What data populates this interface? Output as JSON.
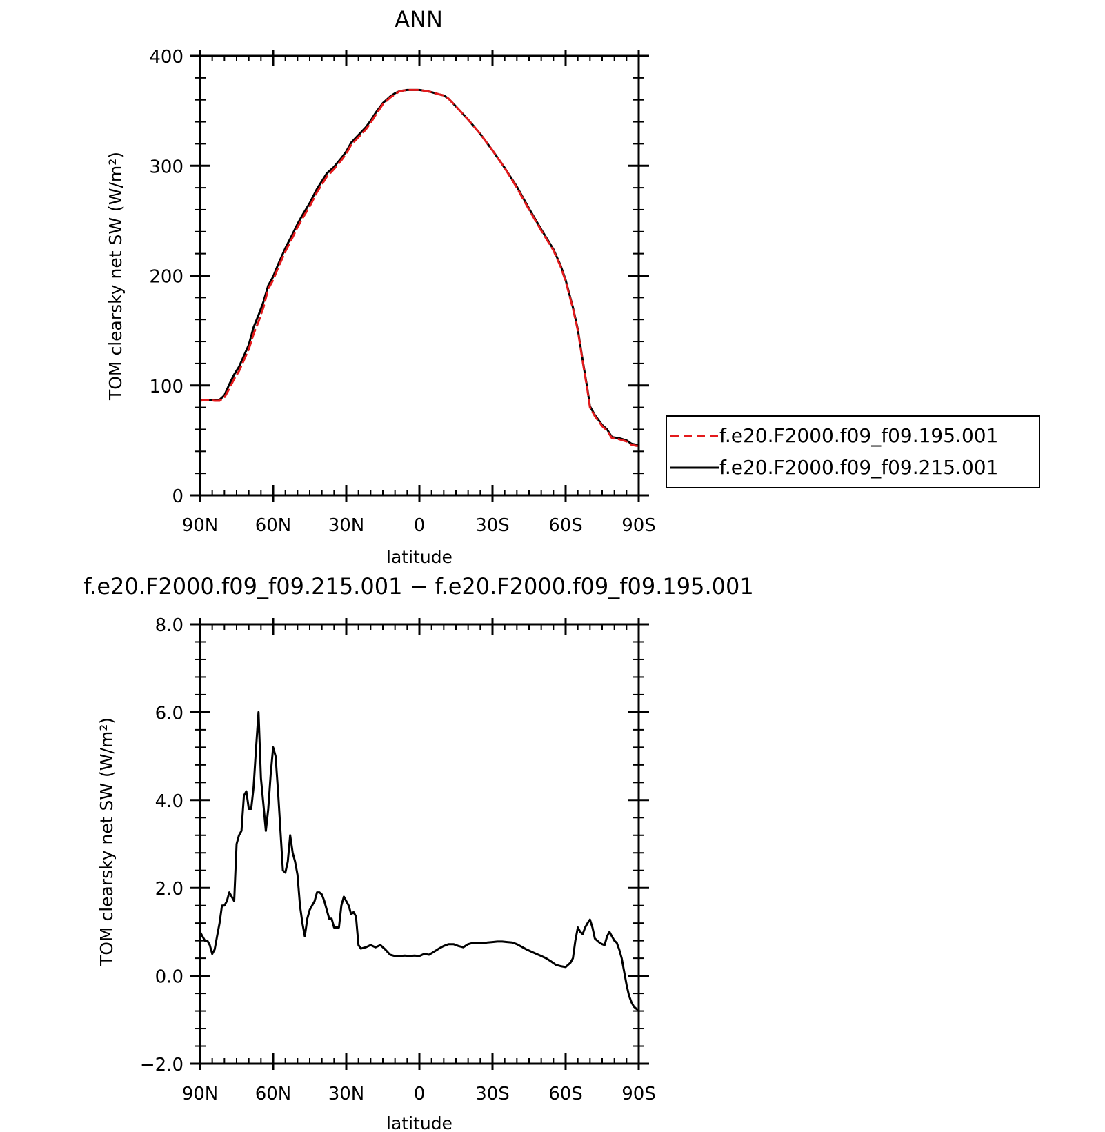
{
  "chart_data": [
    {
      "type": "line",
      "title": "ANN",
      "xlabel": "latitude",
      "ylabel": "TOM clearsky net SW (W/m²)",
      "xlim": [
        90,
        -90
      ],
      "ylim": [
        0,
        400
      ],
      "x_ticks": [
        90,
        60,
        30,
        0,
        -30,
        -60,
        -90
      ],
      "x_ticklabels": [
        "90N",
        "60N",
        "30N",
        "0",
        "30S",
        "60S",
        "90S"
      ],
      "y_ticks": [
        0,
        100,
        200,
        300,
        400
      ],
      "y_ticklabels": [
        "0",
        "100",
        "200",
        "300",
        "400"
      ],
      "grid": false,
      "legend_position": "right",
      "x": [
        90,
        87,
        84,
        82,
        80,
        78,
        76,
        74,
        72,
        70,
        68,
        66,
        64,
        62,
        60,
        58,
        55,
        52,
        50,
        48,
        45,
        42,
        40,
        38,
        35,
        32,
        30,
        28,
        25,
        22,
        20,
        18,
        15,
        12,
        10,
        8,
        5,
        2,
        0,
        -3,
        -5,
        -8,
        -10,
        -12,
        -15,
        -20,
        -25,
        -30,
        -35,
        -40,
        -45,
        -50,
        -55,
        -58,
        -60,
        -63,
        -65,
        -67,
        -69,
        -70,
        -72,
        -75,
        -77,
        -79,
        -82,
        -85,
        -87,
        -89,
        -90
      ],
      "series": [
        {
          "name": "f.e20.F2000.f09_f09.195.001",
          "color": "#e31a1c",
          "dash": "dashed",
          "values": [
            86,
            87,
            86,
            86,
            89,
            97,
            106,
            113,
            123,
            133,
            147,
            158,
            171,
            188,
            196,
            207,
            222,
            235,
            244,
            252,
            263,
            276,
            283,
            290,
            297,
            305,
            311,
            319,
            326,
            333,
            339,
            346,
            356,
            362,
            365,
            368,
            369,
            369,
            369,
            368,
            367,
            365,
            364,
            361,
            354,
            342,
            329,
            314,
            298,
            280,
            260,
            241,
            223,
            208,
            195,
            170,
            150,
            122,
            95,
            80,
            72,
            63,
            59,
            52,
            51,
            49,
            46,
            45,
            45
          ]
        },
        {
          "name": "f.e20.F2000.f09_f09.215.001",
          "color": "#000000",
          "dash": "solid",
          "values": [
            87,
            87,
            87,
            87,
            91,
            101,
            110,
            117,
            127,
            137,
            153,
            164,
            176,
            191,
            199,
            210,
            225,
            238,
            247,
            255,
            266,
            279,
            286,
            293,
            299,
            307,
            313,
            321,
            328,
            335,
            341,
            348,
            357,
            363,
            366,
            368,
            369,
            369,
            369,
            368,
            367,
            365,
            364,
            361,
            354,
            342,
            329,
            314,
            298,
            281,
            261,
            242,
            224,
            209,
            196,
            171,
            151,
            123,
            96,
            81,
            73,
            64,
            60,
            53,
            52,
            50,
            47,
            46,
            45
          ]
        }
      ]
    },
    {
      "type": "line",
      "title": "f.e20.F2000.f09_f09.215.001 − f.e20.F2000.f09_f09.195.001",
      "xlabel": "latitude",
      "ylabel": "TOM clearsky net SW (W/m²)",
      "xlim": [
        90,
        -90
      ],
      "ylim": [
        -2,
        8
      ],
      "x_ticks": [
        90,
        60,
        30,
        0,
        -30,
        -60,
        -90
      ],
      "x_ticklabels": [
        "90N",
        "60N",
        "30N",
        "0",
        "30S",
        "60S",
        "90S"
      ],
      "y_ticks": [
        -2,
        0,
        2,
        4,
        6,
        8
      ],
      "y_ticklabels": [
        "−2.0",
        "0.0",
        "2.0",
        "4.0",
        "6.0",
        "8.0"
      ],
      "grid": false,
      "series": [
        {
          "name": "",
          "color": "#000000",
          "dash": "solid",
          "x": [
            90,
            89,
            88,
            87,
            86,
            85,
            84,
            83,
            82,
            81,
            80,
            79,
            78,
            77,
            76,
            75,
            74,
            73,
            72,
            71,
            70,
            69,
            68,
            67,
            66,
            65,
            64,
            63,
            62,
            61,
            60,
            59,
            58,
            57,
            56,
            55,
            54,
            53,
            52,
            51,
            50,
            49,
            48,
            47,
            46,
            45,
            44,
            43,
            42,
            41,
            40,
            39,
            38,
            37,
            36,
            35,
            34,
            33,
            32,
            31,
            30,
            29,
            28,
            27,
            26,
            25,
            24,
            22,
            20,
            18,
            16,
            14,
            12,
            10,
            8,
            6,
            4,
            2,
            0,
            -2,
            -4,
            -6,
            -8,
            -10,
            -12,
            -14,
            -16,
            -18,
            -20,
            -22,
            -24,
            -26,
            -28,
            -30,
            -32,
            -34,
            -36,
            -38,
            -40,
            -42,
            -44,
            -46,
            -48,
            -50,
            -52,
            -54,
            -56,
            -58,
            -60,
            -61,
            -62,
            -63,
            -64,
            -65,
            -66,
            -67,
            -68,
            -69,
            -70,
            -71,
            -72,
            -73,
            -74,
            -75,
            -76,
            -77,
            -78,
            -79,
            -80,
            -81,
            -82,
            -83,
            -84,
            -85,
            -86,
            -87,
            -88,
            -89,
            -90
          ],
          "values": [
            1.0,
            0.9,
            0.8,
            0.8,
            0.7,
            0.5,
            0.6,
            0.9,
            1.2,
            1.6,
            1.6,
            1.7,
            1.9,
            1.8,
            1.7,
            3.0,
            3.2,
            3.3,
            4.1,
            4.2,
            3.8,
            3.8,
            4.3,
            5.2,
            6.0,
            4.5,
            3.9,
            3.3,
            3.8,
            4.6,
            5.2,
            5.0,
            4.2,
            3.3,
            2.4,
            2.35,
            2.6,
            3.2,
            2.8,
            2.6,
            2.3,
            1.6,
            1.2,
            0.9,
            1.3,
            1.5,
            1.6,
            1.7,
            1.9,
            1.9,
            1.85,
            1.7,
            1.5,
            1.3,
            1.3,
            1.1,
            1.1,
            1.1,
            1.6,
            1.8,
            1.7,
            1.6,
            1.4,
            1.45,
            1.35,
            0.7,
            0.62,
            0.65,
            0.7,
            0.65,
            0.7,
            0.6,
            0.48,
            0.45,
            0.45,
            0.46,
            0.45,
            0.46,
            0.45,
            0.5,
            0.48,
            0.55,
            0.62,
            0.68,
            0.72,
            0.72,
            0.68,
            0.65,
            0.72,
            0.75,
            0.75,
            0.74,
            0.76,
            0.77,
            0.78,
            0.78,
            0.77,
            0.76,
            0.72,
            0.66,
            0.6,
            0.55,
            0.5,
            0.45,
            0.4,
            0.33,
            0.25,
            0.22,
            0.2,
            0.25,
            0.3,
            0.4,
            0.8,
            1.1,
            1.0,
            0.95,
            1.1,
            1.2,
            1.28,
            1.1,
            0.85,
            0.8,
            0.75,
            0.72,
            0.7,
            0.9,
            1.0,
            0.9,
            0.8,
            0.75,
            0.6,
            0.4,
            0.1,
            -0.2,
            -0.45,
            -0.6,
            -0.7,
            -0.75,
            -0.78
          ]
        }
      ]
    }
  ]
}
